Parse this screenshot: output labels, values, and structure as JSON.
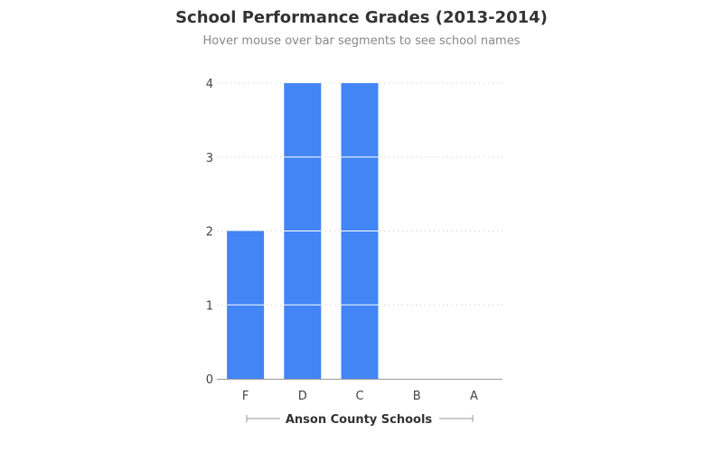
{
  "chart_data": {
    "type": "bar",
    "title": "School Performance Grades (2013-2014)",
    "subtitle": "Hover mouse over bar segments to see school names",
    "categories": [
      "F",
      "D",
      "C",
      "B",
      "A"
    ],
    "values": [
      2,
      4,
      4,
      0,
      0
    ],
    "xlabel": "Anson County Schools",
    "ylabel": "",
    "ylim": [
      0,
      4
    ],
    "yticks": [
      "0",
      "1",
      "2",
      "3",
      "4"
    ],
    "grid": true,
    "bar_color": "#4285F4",
    "segment_separator_color": "#ffffff"
  }
}
